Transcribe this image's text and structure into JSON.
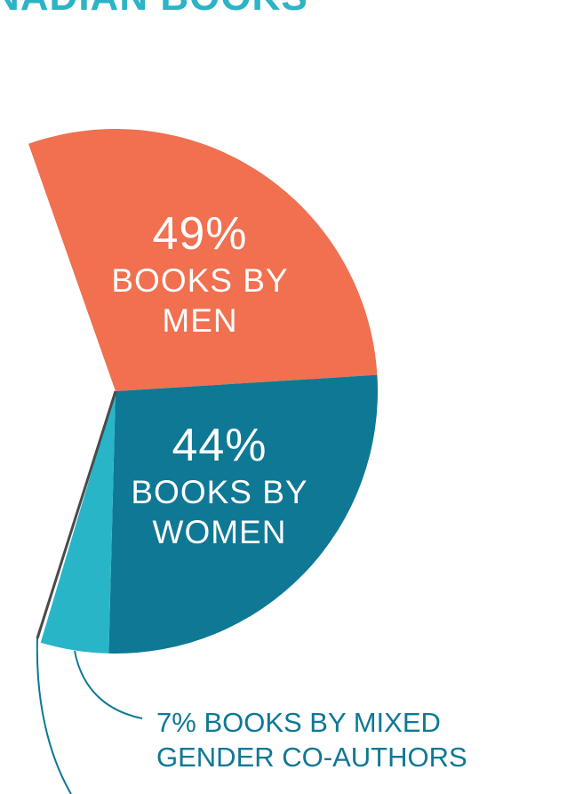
{
  "chart_data": {
    "type": "pie",
    "title": "NADIAN BOOKS",
    "categories": [
      "BOOKS BY MEN",
      "BOOKS BY WOMEN",
      "BOOKS BY MIXED GENDER CO-AUTHORS"
    ],
    "values": [
      49,
      44,
      7
    ],
    "value_labels": [
      "49%",
      "44%",
      "7%"
    ],
    "colors": [
      "#f07050",
      "#0e7895",
      "#29b5c8"
    ]
  }
}
